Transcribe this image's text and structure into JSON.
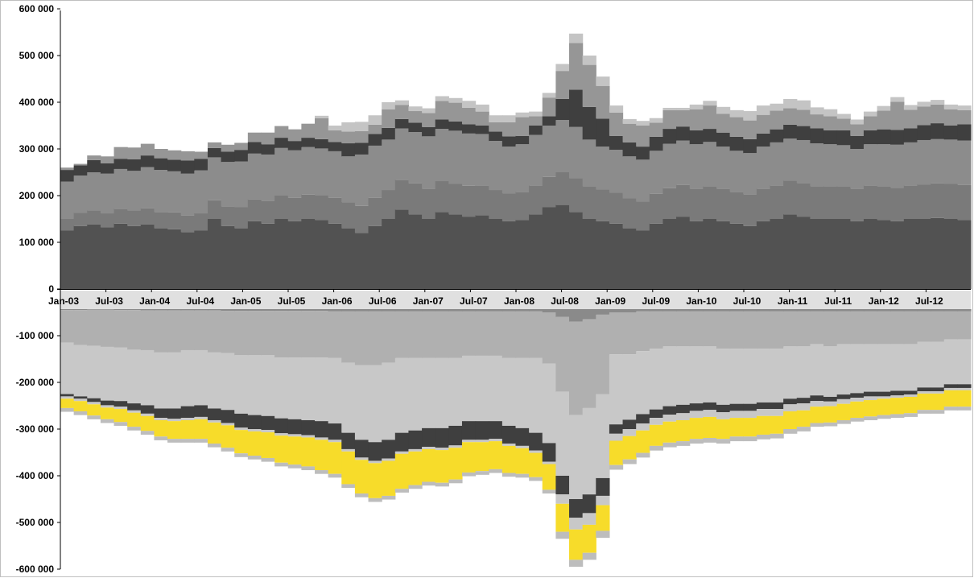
{
  "chart_data": {
    "type": "area",
    "title": "",
    "xlabel": "",
    "ylabel": "",
    "ylim": [
      -600000,
      600000
    ],
    "grid": false,
    "legend": "none",
    "y_ticks": [
      {
        "value": 600000,
        "label": "600 000"
      },
      {
        "value": 500000,
        "label": "500 000"
      },
      {
        "value": 400000,
        "label": "400 000"
      },
      {
        "value": 300000,
        "label": "300 000"
      },
      {
        "value": 200000,
        "label": "200 000"
      },
      {
        "value": 100000,
        "label": "100 000"
      },
      {
        "value": 0,
        "label": "0"
      },
      {
        "value": -100000,
        "label": "-100 000"
      },
      {
        "value": -200000,
        "label": "-200 000"
      },
      {
        "value": -300000,
        "label": "-300 000"
      },
      {
        "value": -400000,
        "label": "-400 000"
      },
      {
        "value": -500000,
        "label": "-500 000"
      },
      {
        "value": -600000,
        "label": "-600 000"
      }
    ],
    "x_ticks": [
      "Jan-03",
      "Jul-03",
      "Jan-04",
      "Jul-04",
      "Jan-05",
      "Jul-05",
      "Jan-06",
      "Jul-06",
      "Jan-07",
      "Jul-07",
      "Jan-08",
      "Jul-08",
      "Jan-09",
      "Jul-09",
      "Jan-10",
      "Jul-10",
      "Jan-11",
      "Jul-11",
      "Jan-12",
      "Jul-12"
    ],
    "colors": {
      "pos_base": "#525252",
      "pos_mid": "#7a7a7a",
      "pos_upper": "#8c8c8c",
      "pos_dark_band": "#3f3f3f",
      "pos_top": "#969696",
      "pos_cap": "#c4c4c4",
      "neg_top": "#8a8a8a",
      "neg_main": "#b0b0b0",
      "neg_light": "#c8c8c8",
      "neg_dark": "#3f3f3f",
      "neg_yellow": "#f7dc2a",
      "neg_bottom": "#bdbdbd",
      "axis_band": "#e0e0e0"
    },
    "positive_series": [
      {
        "values": [
          125,
          135,
          138,
          132,
          140,
          135,
          138,
          130,
          128,
          122,
          125,
          150,
          135,
          130,
          145,
          140,
          150,
          145,
          150,
          148,
          140,
          130,
          120,
          135,
          150,
          170,
          160,
          150,
          165,
          160,
          155,
          158,
          150,
          145,
          148,
          160,
          175,
          180,
          165,
          150,
          145,
          140,
          130,
          125,
          140,
          150,
          155,
          145,
          150,
          145,
          140,
          135,
          145,
          150,
          160,
          155,
          150,
          150,
          150,
          145,
          150,
          148,
          145,
          150,
          150,
          152,
          150,
          148
        ]
      },
      {
        "values": [
          25,
          28,
          30,
          30,
          32,
          33,
          35,
          35,
          36,
          35,
          37,
          40,
          42,
          45,
          47,
          48,
          50,
          50,
          52,
          53,
          55,
          56,
          58,
          60,
          62,
          64,
          66,
          65,
          66,
          65,
          66,
          64,
          62,
          60,
          60,
          62,
          65,
          70,
          72,
          70,
          68,
          66,
          64,
          62,
          64,
          66,
          68,
          70,
          70,
          70,
          68,
          68,
          70,
          72,
          72,
          72,
          70,
          70,
          70,
          70,
          72,
          72,
          72,
          72,
          74,
          74,
          75,
          75
        ]
      },
      {
        "values": [
          80,
          80,
          82,
          85,
          85,
          85,
          88,
          90,
          88,
          90,
          92,
          92,
          95,
          98,
          98,
          100,
          102,
          102,
          102,
          100,
          100,
          98,
          110,
          112,
          108,
          110,
          110,
          112,
          112,
          114,
          112,
          110,
          105,
          100,
          102,
          108,
          110,
          112,
          110,
          100,
          92,
          92,
          90,
          90,
          92,
          95,
          95,
          95,
          95,
          90,
          88,
          88,
          90,
          92,
          90,
          92,
          92,
          90,
          88,
          85,
          88,
          90,
          92,
          92,
          95,
          95,
          95,
          95
        ]
      },
      {
        "values": [
          25,
          22,
          26,
          22,
          22,
          25,
          25,
          25,
          25,
          28,
          25,
          20,
          22,
          25,
          25,
          22,
          22,
          20,
          20,
          20,
          20,
          28,
          25,
          25,
          25,
          20,
          20,
          20,
          20,
          20,
          20,
          18,
          20,
          22,
          18,
          20,
          20,
          45,
          80,
          70,
          60,
          30,
          30,
          28,
          30,
          32,
          30,
          30,
          28,
          30,
          30,
          30,
          28,
          28,
          30,
          30,
          32,
          30,
          32,
          28,
          30,
          32,
          32,
          30,
          32,
          34,
          30,
          35
        ]
      },
      {
        "values": [
          5,
          3,
          10,
          15,
          25,
          25,
          25,
          20,
          20,
          20,
          15,
          12,
          15,
          15,
          20,
          25,
          25,
          25,
          30,
          45,
          25,
          25,
          25,
          20,
          40,
          30,
          25,
          30,
          40,
          40,
          35,
          30,
          20,
          30,
          40,
          20,
          40,
          60,
          100,
          90,
          70,
          50,
          40,
          45,
          30,
          40,
          35,
          45,
          50,
          40,
          42,
          40,
          40,
          40,
          35,
          35,
          30,
          30,
          25,
          25,
          30,
          40,
          60,
          40,
          40,
          40,
          35,
          30
        ]
      },
      {
        "values": [
          0,
          0,
          0,
          0,
          0,
          0,
          0,
          0,
          0,
          0,
          0,
          0,
          0,
          0,
          0,
          0,
          0,
          0,
          0,
          5,
          10,
          20,
          20,
          20,
          15,
          10,
          10,
          10,
          10,
          10,
          15,
          15,
          15,
          15,
          10,
          10,
          10,
          15,
          20,
          20,
          20,
          15,
          10,
          10,
          10,
          5,
          5,
          10,
          10,
          15,
          15,
          20,
          20,
          15,
          20,
          20,
          15,
          15,
          10,
          10,
          10,
          10,
          10,
          10,
          10,
          10,
          10,
          10
        ]
      }
    ],
    "negative_series": [
      {
        "values": [
          45,
          45,
          44,
          44,
          45,
          45,
          46,
          46,
          46,
          46,
          46,
          46,
          47,
          47,
          47,
          47,
          47,
          47,
          47,
          47,
          48,
          48,
          48,
          48,
          48,
          48,
          48,
          48,
          48,
          48,
          48,
          48,
          48,
          48,
          48,
          48,
          50,
          60,
          70,
          65,
          55,
          50,
          50,
          48,
          48,
          48,
          48,
          48,
          48,
          48,
          48,
          48,
          48,
          48,
          48,
          48,
          48,
          48,
          48,
          48,
          48,
          48,
          48,
          48,
          48,
          48,
          48,
          48
        ]
      },
      {
        "values": [
          70,
          75,
          78,
          80,
          80,
          85,
          85,
          90,
          90,
          85,
          85,
          90,
          90,
          95,
          95,
          95,
          100,
          100,
          100,
          100,
          100,
          110,
          115,
          115,
          110,
          100,
          100,
          100,
          100,
          100,
          95,
          95,
          95,
          100,
          100,
          100,
          110,
          160,
          200,
          190,
          170,
          90,
          90,
          85,
          80,
          75,
          75,
          75,
          75,
          80,
          80,
          80,
          80,
          80,
          75,
          75,
          70,
          75,
          70,
          70,
          70,
          70,
          70,
          70,
          65,
          65,
          60,
          60
        ]
      },
      {
        "values": [
          110,
          110,
          112,
          115,
          115,
          115,
          118,
          120,
          120,
          120,
          118,
          120,
          122,
          125,
          128,
          130,
          130,
          132,
          134,
          136,
          140,
          150,
          160,
          165,
          165,
          160,
          155,
          150,
          150,
          145,
          140,
          140,
          140,
          145,
          150,
          160,
          170,
          180,
          180,
          185,
          180,
          150,
          140,
          135,
          130,
          128,
          125,
          122,
          120,
          120,
          118,
          118,
          115,
          115,
          112,
          110,
          110,
          108,
          108,
          105,
          102,
          102,
          100,
          100,
          98,
          98,
          96,
          96
        ]
      },
      {
        "values": [
          5,
          5,
          8,
          10,
          12,
          15,
          18,
          20,
          22,
          25,
          25,
          25,
          28,
          30,
          30,
          30,
          32,
          32,
          32,
          35,
          35,
          35,
          38,
          40,
          40,
          40,
          40,
          40,
          42,
          42,
          40,
          40,
          38,
          38,
          38,
          38,
          40,
          40,
          40,
          40,
          38,
          20,
          20,
          20,
          18,
          18,
          18,
          16,
          16,
          16,
          15,
          15,
          14,
          14,
          12,
          12,
          12,
          10,
          10,
          10,
          10,
          10,
          10,
          8,
          8,
          8,
          8,
          8
        ]
      },
      {
        "values": [
          5,
          5,
          5,
          5,
          5,
          5,
          5,
          5,
          5,
          5,
          5,
          5,
          5,
          5,
          5,
          5,
          5,
          5,
          5,
          5,
          5,
          5,
          5,
          5,
          5,
          5,
          5,
          5,
          5,
          5,
          5,
          5,
          5,
          5,
          5,
          5,
          5,
          20,
          25,
          25,
          20,
          15,
          15,
          15,
          15,
          15,
          15,
          15,
          15,
          15,
          15,
          15,
          15,
          15,
          15,
          15,
          12,
          10,
          10,
          8,
          8,
          5,
          5,
          5,
          5,
          5,
          5,
          5
        ]
      },
      {
        "values": [
          20,
          22,
          24,
          25,
          28,
          30,
          32,
          35,
          38,
          40,
          42,
          45,
          48,
          50,
          52,
          55,
          58,
          60,
          62,
          65,
          68,
          70,
          72,
          75,
          75,
          75,
          72,
          70,
          70,
          68,
          65,
          62,
          60,
          58,
          55,
          52,
          55,
          60,
          65,
          60,
          55,
          52,
          50,
          48,
          45,
          45,
          45,
          45,
          45,
          42,
          40,
          40,
          40,
          38,
          38,
          35,
          35,
          35,
          35,
          35,
          35,
          35,
          35,
          35,
          35,
          35,
          35,
          35
        ]
      },
      {
        "values": [
          8,
          8,
          8,
          8,
          8,
          8,
          8,
          8,
          8,
          8,
          8,
          8,
          8,
          8,
          8,
          8,
          8,
          8,
          8,
          8,
          8,
          8,
          8,
          8,
          8,
          8,
          8,
          8,
          8,
          8,
          8,
          8,
          8,
          8,
          8,
          8,
          8,
          15,
          15,
          15,
          15,
          10,
          10,
          10,
          10,
          10,
          10,
          10,
          10,
          10,
          10,
          10,
          10,
          10,
          10,
          10,
          8,
          8,
          8,
          8,
          8,
          8,
          8,
          8,
          8,
          8,
          8,
          8
        ]
      }
    ]
  }
}
